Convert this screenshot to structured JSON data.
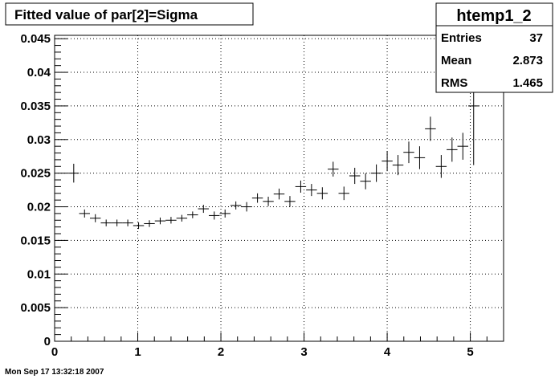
{
  "chart_data": {
    "type": "scatter",
    "title": "Fitted value of par[2]=Sigma",
    "xlabel": "",
    "ylabel": "",
    "xlim": [
      0,
      5.4
    ],
    "ylim": [
      0,
      0.0455
    ],
    "x_ticks": [
      "0",
      "1",
      "2",
      "3",
      "4",
      "5"
    ],
    "y_ticks": [
      "0",
      "0.005",
      "0.01",
      "0.015",
      "0.02",
      "0.025",
      "0.03",
      "0.035",
      "0.04",
      "0.045"
    ],
    "grid": true,
    "legend": "none",
    "bin_width": 0.13,
    "series": [
      {
        "x": [
          0.23,
          0.36,
          0.49,
          0.62,
          0.75,
          0.88,
          1.01,
          1.14,
          1.27,
          1.4,
          1.53,
          1.66,
          1.79,
          1.92,
          2.05,
          2.18,
          2.31,
          2.44,
          2.57,
          2.7,
          2.83,
          2.96,
          3.09,
          3.22,
          3.35,
          3.48,
          3.61,
          3.74,
          3.87,
          4.0,
          4.13,
          4.26,
          4.39,
          4.52,
          4.65,
          4.78,
          4.91,
          5.04
        ],
        "y": [
          0.025,
          0.019,
          0.0183,
          0.0176,
          0.0176,
          0.0176,
          0.0172,
          0.0175,
          0.0179,
          0.018,
          0.0183,
          0.0188,
          0.0197,
          0.0187,
          0.019,
          0.0202,
          0.02,
          0.0213,
          0.0208,
          0.0219,
          0.0208,
          0.023,
          0.0225,
          0.022,
          0.0256,
          0.022,
          0.0246,
          0.0238,
          0.025,
          0.0268,
          0.0262,
          0.0281,
          0.0273,
          0.0316,
          0.026,
          0.0285,
          0.029,
          0.035
        ],
        "yerr": [
          0.0014,
          0.0006,
          0.0006,
          0.0005,
          0.0005,
          0.0005,
          0.0005,
          0.0005,
          0.0005,
          0.0005,
          0.0005,
          0.0005,
          0.0006,
          0.0006,
          0.0006,
          0.0006,
          0.0007,
          0.0007,
          0.0007,
          0.0008,
          0.0008,
          0.0009,
          0.0009,
          0.0009,
          0.0011,
          0.001,
          0.0012,
          0.0012,
          0.0013,
          0.0015,
          0.0015,
          0.0016,
          0.0017,
          0.0018,
          0.0017,
          0.0018,
          0.002,
          0.0088
        ]
      }
    ]
  },
  "stats_box": {
    "title": "htemp1_2",
    "rows": [
      {
        "label": "Entries",
        "value": "37"
      },
      {
        "label": "Mean",
        "value": "2.873"
      },
      {
        "label": "RMS",
        "value": "1.465"
      }
    ]
  },
  "footer": {
    "timestamp": "Mon Sep 17 13:32:18 2007"
  }
}
